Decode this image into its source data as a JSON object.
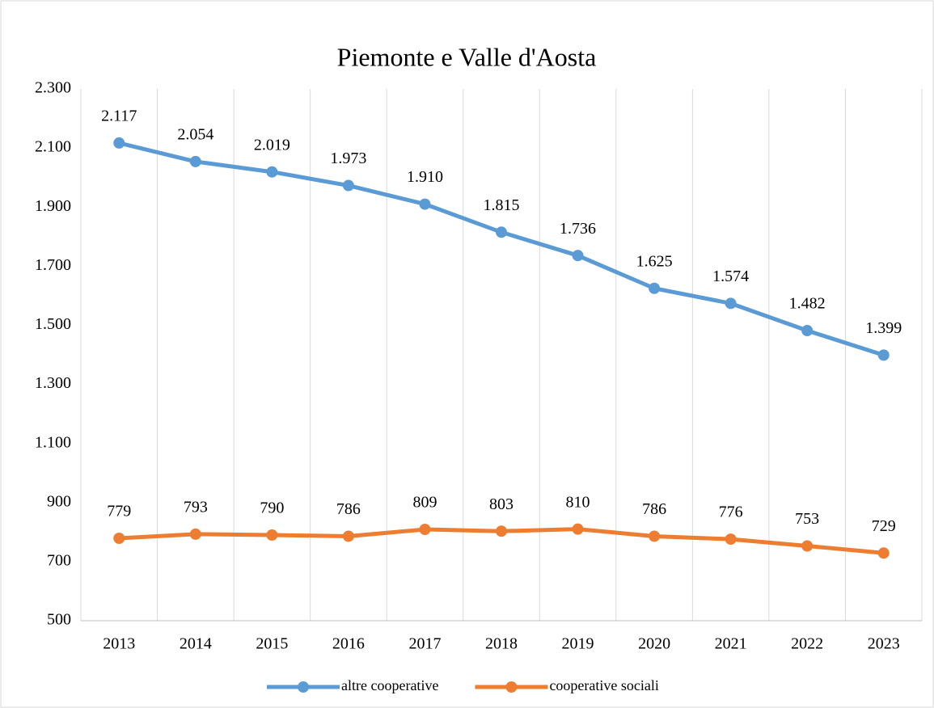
{
  "chart_data": {
    "type": "line",
    "title": "Piemonte e Valle d'Aosta",
    "categories": [
      "2013",
      "2014",
      "2015",
      "2016",
      "2017",
      "2018",
      "2019",
      "2020",
      "2021",
      "2022",
      "2023"
    ],
    "series": [
      {
        "name": "altre cooperative",
        "color": "#5b9bd5",
        "values": [
          2117,
          2054,
          2019,
          1973,
          1910,
          1815,
          1736,
          1625,
          1574,
          1482,
          1399
        ],
        "value_labels": [
          "2.117",
          "2.054",
          "2.019",
          "1.973",
          "1.910",
          "1.815",
          "1.736",
          "1.625",
          "1.574",
          "1.482",
          "1.399"
        ]
      },
      {
        "name": "cooperative sociali",
        "color": "#ed7d31",
        "values": [
          779,
          793,
          790,
          786,
          809,
          803,
          810,
          786,
          776,
          753,
          729
        ]
      }
    ],
    "ylim": [
      500,
      2300
    ],
    "yticks": [
      {
        "value": 500,
        "label": "500"
      },
      {
        "value": 700,
        "label": "700"
      },
      {
        "value": 900,
        "label": "900"
      },
      {
        "value": 1100,
        "label": "1.100"
      },
      {
        "value": 1300,
        "label": "1.300"
      },
      {
        "value": 1500,
        "label": "1.500"
      },
      {
        "value": 1700,
        "label": "1.700"
      },
      {
        "value": 1900,
        "label": "1.900"
      },
      {
        "value": 2100,
        "label": "2.100"
      },
      {
        "value": 2300,
        "label": "2.300"
      }
    ],
    "grid": true,
    "legend": "bottom"
  }
}
